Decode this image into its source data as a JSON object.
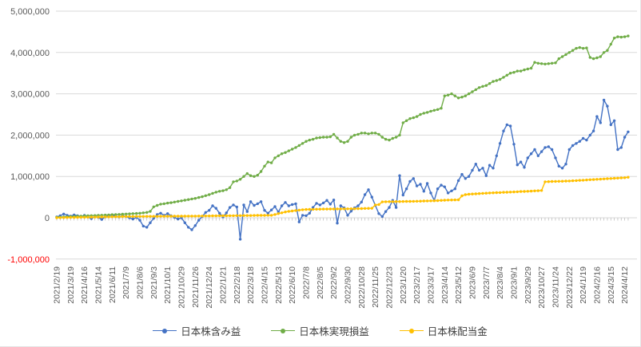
{
  "chart_data": {
    "type": "line",
    "title": "",
    "grid": true,
    "legend_position": "bottom",
    "n_points": 166,
    "ylim": [
      -1000000,
      5000000
    ],
    "y_ticks": [
      5000000,
      4000000,
      3000000,
      2000000,
      1000000,
      0,
      -1000000
    ],
    "y_tick_labels": [
      "5,000,000",
      "4,000,000",
      "3,000,000",
      "2,000,000",
      "1,000,000",
      "0",
      "-1,000,000"
    ],
    "colors": {
      "grid": "#d9d9d9",
      "label": "#595959",
      "negative": "#ff0000",
      "tick": "#bfbfbf"
    },
    "x_tick_labels": [
      "2021/2/19",
      "2021/3/19",
      "2021/4/16",
      "2021/5/14",
      "2021/6/11",
      "2021/7/9",
      "2021/8/6",
      "2021/9/3",
      "2021/10/1",
      "2021/10/29",
      "2021/11/26",
      "2021/12/24",
      "2022/1/21",
      "2022/2/18",
      "2022/3/18",
      "2022/4/15",
      "2022/5/13",
      "2022/6/10",
      "2022/7/8",
      "2022/8/5",
      "2022/9/2",
      "2022/9/30",
      "2022/10/28",
      "2022/11/25",
      "2022/12/23",
      "2023/1/20",
      "2023/2/17",
      "2023/3/17",
      "2023/4/14",
      "2023/5/12",
      "2023/6/9",
      "2023/7/7",
      "2023/8/4",
      "2023/9/1",
      "2023/9/29",
      "2023/10/27",
      "2023/11/24",
      "2023/12/22",
      "2024/1/19",
      "2024/2/16",
      "2024/3/15",
      "2024/4/12"
    ],
    "series": [
      {
        "name": "日本株含み益",
        "color": "#4472c4",
        "values": [
          20000,
          50000,
          90000,
          60000,
          40000,
          70000,
          50000,
          30000,
          60000,
          20000,
          -20000,
          30000,
          10000,
          -40000,
          20000,
          50000,
          70000,
          40000,
          20000,
          50000,
          30000,
          0,
          -30000,
          10000,
          -60000,
          -200000,
          -230000,
          -120000,
          -10000,
          80000,
          110000,
          60000,
          100000,
          50000,
          10000,
          -30000,
          0,
          -120000,
          -230000,
          -290000,
          -190000,
          -60000,
          30000,
          130000,
          180000,
          290000,
          230000,
          110000,
          20000,
          120000,
          250000,
          310000,
          260000,
          -520000,
          310000,
          150000,
          390000,
          300000,
          340000,
          390000,
          180000,
          110000,
          190000,
          270000,
          140000,
          290000,
          370000,
          290000,
          320000,
          340000,
          -100000,
          60000,
          50000,
          110000,
          250000,
          350000,
          310000,
          360000,
          420000,
          330000,
          430000,
          -130000,
          290000,
          240000,
          60000,
          160000,
          240000,
          290000,
          380000,
          560000,
          680000,
          500000,
          300000,
          100000,
          30000,
          150000,
          250000,
          420000,
          250000,
          1020000,
          550000,
          700000,
          880000,
          950000,
          770000,
          810000,
          640000,
          830000,
          600000,
          420000,
          700000,
          790000,
          750000,
          600000,
          650000,
          700000,
          900000,
          1050000,
          950000,
          1000000,
          1150000,
          1300000,
          1150000,
          1200000,
          1020000,
          1270000,
          1200000,
          1500000,
          1800000,
          2100000,
          2250000,
          2220000,
          1780000,
          1280000,
          1350000,
          1220000,
          1450000,
          1550000,
          1650000,
          1500000,
          1600000,
          1700000,
          1720000,
          1650000,
          1450000,
          1250000,
          1200000,
          1300000,
          1650000,
          1750000,
          1800000,
          1850000,
          1920000,
          1880000,
          2000000,
          2100000,
          2450000,
          2300000,
          2850000,
          2700000,
          2250000,
          2350000,
          1650000,
          1700000,
          1950000,
          2080000
        ]
      },
      {
        "name": "日本株実現損益",
        "color": "#70ad47",
        "values": [
          10000,
          15000,
          20000,
          25000,
          30000,
          33000,
          36000,
          40000,
          45000,
          48000,
          52000,
          55000,
          58000,
          62000,
          65000,
          70000,
          75000,
          78000,
          82000,
          86000,
          90000,
          95000,
          100000,
          105000,
          110000,
          120000,
          130000,
          155000,
          265000,
          300000,
          330000,
          340000,
          355000,
          365000,
          380000,
          395000,
          410000,
          425000,
          440000,
          455000,
          470000,
          490000,
          510000,
          535000,
          560000,
          590000,
          620000,
          640000,
          655000,
          680000,
          730000,
          870000,
          890000,
          930000,
          1000000,
          1070000,
          1020000,
          1000000,
          1030000,
          1120000,
          1250000,
          1350000,
          1330000,
          1450000,
          1500000,
          1550000,
          1580000,
          1620000,
          1660000,
          1700000,
          1750000,
          1800000,
          1850000,
          1880000,
          1900000,
          1930000,
          1940000,
          1950000,
          1950000,
          1960000,
          2020000,
          1930000,
          1850000,
          1820000,
          1850000,
          1950000,
          2000000,
          2020000,
          2050000,
          2050000,
          2030000,
          2050000,
          2050000,
          2020000,
          1950000,
          1900000,
          1880000,
          1920000,
          1950000,
          2000000,
          2300000,
          2350000,
          2400000,
          2420000,
          2450000,
          2500000,
          2530000,
          2550000,
          2580000,
          2600000,
          2620000,
          2650000,
          2950000,
          2970000,
          3000000,
          2950000,
          2900000,
          2920000,
          2950000,
          3000000,
          3050000,
          3100000,
          3150000,
          3180000,
          3200000,
          3250000,
          3300000,
          3320000,
          3350000,
          3400000,
          3450000,
          3500000,
          3520000,
          3550000,
          3550000,
          3580000,
          3600000,
          3620000,
          3760000,
          3740000,
          3730000,
          3720000,
          3730000,
          3740000,
          3750000,
          3850000,
          3900000,
          3950000,
          4000000,
          4050000,
          4100000,
          4120000,
          4100000,
          4110000,
          3880000,
          3850000,
          3870000,
          3900000,
          4000000,
          4050000,
          4200000,
          4350000,
          4380000,
          4370000,
          4380000,
          4400000
        ]
      },
      {
        "name": "日本株配当金",
        "color": "#ffc000",
        "values": [
          0,
          2000,
          4000,
          5000,
          7000,
          8000,
          10000,
          11000,
          12000,
          13000,
          15000,
          16000,
          18000,
          20000,
          21000,
          22000,
          24000,
          25000,
          26000,
          28000,
          30000,
          30000,
          31000,
          32000,
          32000,
          33000,
          34000,
          34000,
          35000,
          35000,
          36000,
          36000,
          37000,
          37000,
          38000,
          38000,
          39000,
          39000,
          40000,
          40000,
          41000,
          42000,
          43000,
          44000,
          45000,
          46000,
          47000,
          48000,
          48000,
          49000,
          50000,
          51000,
          52000,
          53000,
          54000,
          55000,
          55000,
          56000,
          57000,
          57000,
          58000,
          59000,
          60000,
          80000,
          100000,
          120000,
          140000,
          155000,
          165000,
          175000,
          185000,
          195000,
          200000,
          203000,
          205000,
          207000,
          209000,
          210000,
          211000,
          212000,
          213000,
          214000,
          215000,
          216000,
          217000,
          218000,
          219000,
          220000,
          222000,
          225000,
          228000,
          230000,
          310000,
          320000,
          385000,
          388000,
          390000,
          390000,
          391000,
          392000,
          393000,
          395000,
          396000,
          398000,
          400000,
          402000,
          405000,
          408000,
          410000,
          412000,
          415000,
          420000,
          425000,
          428000,
          430000,
          432000,
          435000,
          530000,
          560000,
          570000,
          575000,
          580000,
          585000,
          590000,
          595000,
          600000,
          605000,
          608000,
          610000,
          615000,
          618000,
          622000,
          625000,
          630000,
          635000,
          638000,
          640000,
          645000,
          650000,
          655000,
          660000,
          870000,
          875000,
          878000,
          880000,
          883000,
          885000,
          888000,
          890000,
          895000,
          900000,
          905000,
          910000,
          915000,
          920000,
          925000,
          930000,
          935000,
          940000,
          945000,
          950000,
          955000,
          960000,
          965000,
          970000,
          980000
        ]
      }
    ]
  }
}
